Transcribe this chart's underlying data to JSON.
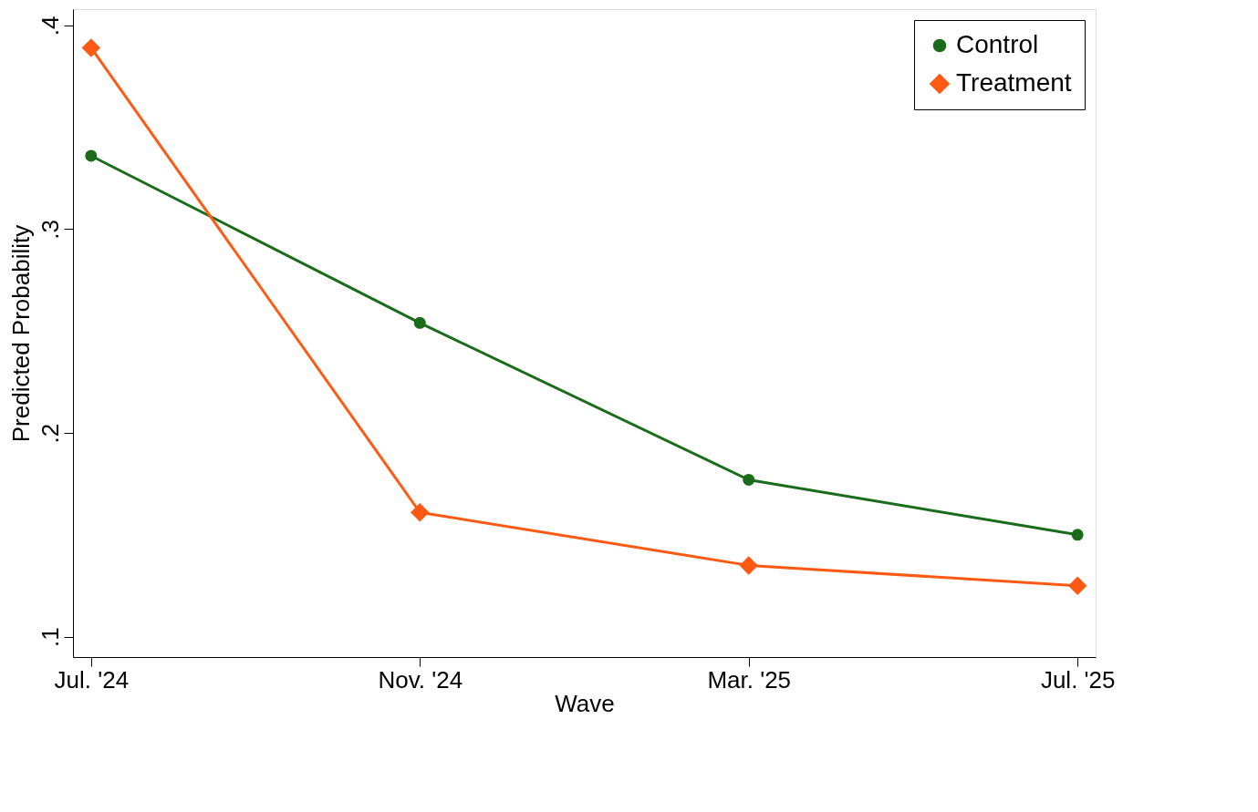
{
  "chart_data": {
    "type": "line",
    "xlabel": "Wave",
    "ylabel": "Predicted Probability",
    "categories": [
      "Jul. '24",
      "Nov. '24",
      "Mar. '25",
      "Jul. '25"
    ],
    "series": [
      {
        "name": "Control",
        "color": "#1a6b1a",
        "marker": "circle",
        "values": [
          0.336,
          0.254,
          0.177,
          0.15
        ]
      },
      {
        "name": "Treatment",
        "color": "#ff5a14",
        "marker": "diamond",
        "values": [
          0.389,
          0.161,
          0.135,
          0.125
        ]
      }
    ],
    "ylim": [
      0.09,
      0.408
    ],
    "yticks": [
      {
        "value": 0.1,
        "label": ".1"
      },
      {
        "value": 0.2,
        "label": ".2"
      },
      {
        "value": 0.3,
        "label": ".3"
      },
      {
        "value": 0.4,
        "label": ".4"
      }
    ],
    "grid": false,
    "legend": "top right",
    "line_style": "solid"
  }
}
